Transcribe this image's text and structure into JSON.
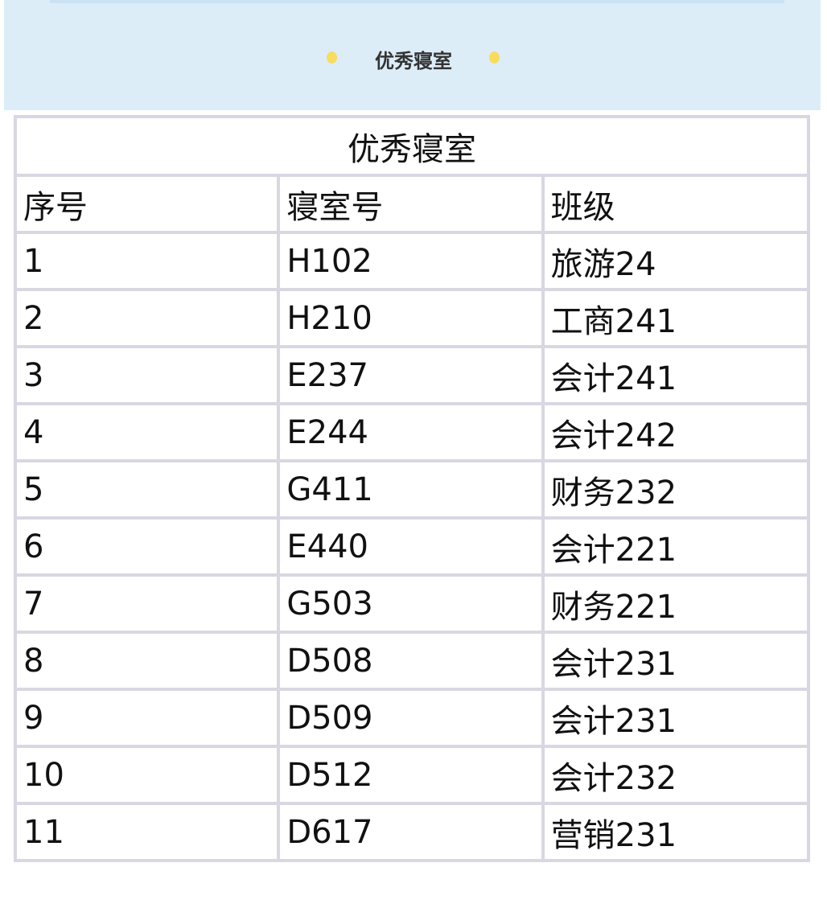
{
  "banner": {
    "title": "优秀寝室",
    "dot_color": "#f8dc5e",
    "background": "#dcedf8"
  },
  "table": {
    "title": "优秀寝室",
    "headers": [
      "序号",
      "寝室号",
      "班级"
    ],
    "rows": [
      [
        "1",
        "H102",
        "旅游24"
      ],
      [
        "2",
        "H210",
        "工商241"
      ],
      [
        "3",
        "E237",
        "会计241"
      ],
      [
        "4",
        "E244",
        "会计242"
      ],
      [
        "5",
        "G411",
        "财务232"
      ],
      [
        "6",
        "E440",
        "会计221"
      ],
      [
        "7",
        "G503",
        "财务221"
      ],
      [
        "8",
        "D508",
        "会计231"
      ],
      [
        "9",
        "D509",
        "会计231"
      ],
      [
        "10",
        "D512",
        "会计232"
      ],
      [
        "11",
        "D617",
        "营销231"
      ]
    ]
  }
}
